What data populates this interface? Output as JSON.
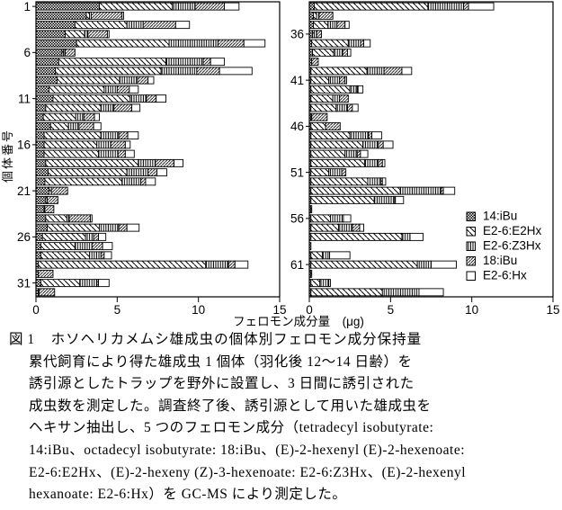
{
  "colors": {
    "ink": "#000000",
    "background": "#ffffff"
  },
  "chart_data": {
    "type": "bar",
    "variant": "horizontal-stacked",
    "title": "",
    "xlabel": "フェロモン成分量　(μg)",
    "ylabel": "個体番号",
    "xlim": [
      0,
      15
    ],
    "x_ticks": [
      0,
      5,
      10,
      15
    ],
    "grid": false,
    "legend_position": "inside-right-bottom",
    "components": [
      "14:iBu",
      "E2-6:E2Hx",
      "E2-6:Z3Hx",
      "18:iBu",
      "E2-6:Hx"
    ],
    "component_patterns": [
      "checker",
      "diagonal-down",
      "vertical-lines",
      "diagonal-up",
      "plain"
    ],
    "panels": [
      {
        "start_id": 1,
        "end_id": 32,
        "y_ticks": [
          1,
          6,
          11,
          16,
          21,
          26,
          31
        ]
      },
      {
        "start_id": 33,
        "end_id": 64,
        "y_ticks": [
          36,
          41,
          46,
          51,
          56,
          61
        ]
      }
    ],
    "rows": [
      {
        "id": 1,
        "values": [
          3.9,
          4.5,
          1.4,
          1.8,
          0.9
        ]
      },
      {
        "id": 2,
        "values": [
          3.1,
          0.2,
          0.1,
          1.9,
          0.1
        ]
      },
      {
        "id": 3,
        "values": [
          2.4,
          3.2,
          1.0,
          2.0,
          0.85
        ]
      },
      {
        "id": 4,
        "values": [
          1.8,
          1.2,
          0.2,
          1.2,
          0.1
        ]
      },
      {
        "id": 5,
        "values": [
          2.5,
          5.7,
          3.0,
          1.6,
          1.3
        ]
      },
      {
        "id": 6,
        "values": [
          1.6,
          0.1,
          0.1,
          0.6,
          0
        ]
      },
      {
        "id": 7,
        "values": [
          1.4,
          6.6,
          2.3,
          0.45,
          0.85
        ]
      },
      {
        "id": 8,
        "values": [
          1.2,
          6.5,
          2.2,
          1.4,
          2.0
        ]
      },
      {
        "id": 9,
        "values": [
          1.3,
          3.85,
          1.1,
          0.65,
          0.35
        ]
      },
      {
        "id": 10,
        "values": [
          0.8,
          3.4,
          0.8,
          0.75,
          0.55
        ]
      },
      {
        "id": 11,
        "values": [
          1.05,
          4.75,
          1.0,
          0.6,
          0.6
        ]
      },
      {
        "id": 12,
        "values": [
          0.6,
          3.4,
          0.8,
          1.1,
          0.5
        ]
      },
      {
        "id": 13,
        "values": [
          0.45,
          2.0,
          0.5,
          0.65,
          0.3
        ]
      },
      {
        "id": 14,
        "values": [
          0.9,
          1.1,
          0.65,
          0.9,
          0.45
        ]
      },
      {
        "id": 15,
        "values": [
          0.5,
          3.5,
          1.1,
          0.55,
          0.65
        ]
      },
      {
        "id": 16,
        "values": [
          0.5,
          3.25,
          0.85,
          0.9,
          0.3
        ]
      },
      {
        "id": 17,
        "values": [
          0.5,
          3.35,
          1.2,
          0.45,
          0.55
        ]
      },
      {
        "id": 18,
        "values": [
          0.6,
          5.7,
          1.05,
          1.15,
          0.55
        ]
      },
      {
        "id": 19,
        "values": [
          0.75,
          4.85,
          1.3,
          0.55,
          0.6
        ]
      },
      {
        "id": 20,
        "values": [
          0.55,
          4.75,
          1.15,
          0.3,
          0.6
        ]
      },
      {
        "id": 21,
        "values": [
          0.8,
          0.15,
          0,
          1.0,
          0
        ]
      },
      {
        "id": 22,
        "values": [
          0.6,
          0.1,
          0,
          0.65,
          0
        ]
      },
      {
        "id": 23,
        "values": [
          0.5,
          0.05,
          0,
          0.55,
          0
        ]
      },
      {
        "id": 24,
        "values": [
          0.6,
          1.3,
          0.15,
          1.3,
          0.1
        ]
      },
      {
        "id": 25,
        "values": [
          0.7,
          3.2,
          1.2,
          0.5,
          0.75
        ]
      },
      {
        "id": 26,
        "values": [
          0.4,
          2.65,
          0.5,
          0.3,
          0.45
        ]
      },
      {
        "id": 27,
        "values": [
          0.3,
          2.1,
          1.05,
          0.65,
          0.6
        ]
      },
      {
        "id": 28,
        "values": [
          0.3,
          3.0,
          0.7,
          0.2,
          0.45
        ]
      },
      {
        "id": 29,
        "values": [
          0.15,
          10.3,
          1.4,
          0.4,
          0.8
        ]
      },
      {
        "id": 30,
        "values": [
          0.15,
          0,
          0,
          0.9,
          0
        ]
      },
      {
        "id": 31,
        "values": [
          0.3,
          2.4,
          1.05,
          0.1,
          0.65
        ]
      },
      {
        "id": 32,
        "values": [
          0.15,
          0.05,
          0,
          0.95,
          0
        ]
      },
      {
        "id": 33,
        "values": [
          0.3,
          7.0,
          2.2,
          0.3,
          1.55
        ]
      },
      {
        "id": 34,
        "values": [
          0.25,
          0.2,
          0.15,
          0.85,
          0
        ]
      },
      {
        "id": 35,
        "values": [
          0.25,
          0.9,
          0.55,
          0.5,
          0.25
        ]
      },
      {
        "id": 36,
        "values": [
          0.2,
          0.1,
          0.15,
          0.3,
          0
        ]
      },
      {
        "id": 37,
        "values": [
          0.15,
          2.25,
          0.75,
          0.2,
          0.4
        ]
      },
      {
        "id": 38,
        "values": [
          0.2,
          1.3,
          0.55,
          0.3,
          0.2
        ]
      },
      {
        "id": 39,
        "values": [
          0.15,
          0,
          0,
          0.4,
          0
        ]
      },
      {
        "id": 40,
        "values": [
          0.1,
          3.45,
          1.05,
          1.1,
          0.6
        ]
      },
      {
        "id": 41,
        "values": [
          0.1,
          1.1,
          0.65,
          0.35,
          0.1
        ]
      },
      {
        "id": 42,
        "values": [
          0.1,
          2.4,
          0.45,
          0.05,
          0.3
        ]
      },
      {
        "id": 43,
        "values": [
          0.1,
          1.35,
          0.4,
          0.55,
          0
        ]
      },
      {
        "id": 44,
        "values": [
          0.1,
          1.55,
          0.7,
          0.3,
          0.35
        ]
      },
      {
        "id": 45,
        "values": [
          0.1,
          0.05,
          0,
          0.95,
          0
        ]
      },
      {
        "id": 46,
        "values": [
          0.1,
          0.9,
          0,
          0.9,
          0
        ]
      },
      {
        "id": 47,
        "values": [
          0.1,
          2.4,
          1.15,
          0.2,
          0.6
        ]
      },
      {
        "id": 48,
        "values": [
          0.1,
          3.2,
          0.95,
          0.3,
          0.6
        ]
      },
      {
        "id": 49,
        "values": [
          0.1,
          2.1,
          0.75,
          0.2,
          0.45
        ]
      },
      {
        "id": 50,
        "values": [
          0.1,
          3.3,
          0.85,
          0.25,
          0.15
        ]
      },
      {
        "id": 51,
        "values": [
          0.1,
          1.1,
          0.8,
          0.25,
          0
        ]
      },
      {
        "id": 52,
        "values": [
          0.1,
          3.5,
          0.8,
          0.1,
          0.2
        ]
      },
      {
        "id": 53,
        "values": [
          0.1,
          5.5,
          2.5,
          0.15,
          0.7
        ]
      },
      {
        "id": 54,
        "values": [
          0.1,
          3.9,
          1.25,
          0.05,
          0.5
        ]
      },
      {
        "id": 55,
        "values": [
          0.1,
          0.05,
          0,
          0,
          0
        ]
      },
      {
        "id": 56,
        "values": [
          0.1,
          1.2,
          0.8,
          0,
          0.45
        ]
      },
      {
        "id": 57,
        "values": [
          0.1,
          1.7,
          0.85,
          0.45,
          0.25
        ]
      },
      {
        "id": 58,
        "values": [
          0.1,
          5.6,
          0.5,
          0,
          0.8
        ]
      },
      {
        "id": 59,
        "values": [
          0.1,
          0,
          0,
          0,
          0
        ]
      },
      {
        "id": 60,
        "values": [
          0.1,
          0.7,
          0.45,
          0,
          1.25
        ]
      },
      {
        "id": 61,
        "values": [
          0.1,
          6.55,
          0.85,
          0,
          1.55
        ]
      },
      {
        "id": 62,
        "values": [
          0.1,
          0.05,
          0,
          0,
          0
        ]
      },
      {
        "id": 63,
        "values": [
          0.1,
          0.55,
          0.55,
          0,
          0.1
        ]
      },
      {
        "id": 64,
        "values": [
          0.1,
          4.4,
          2.25,
          0,
          1.5
        ]
      }
    ]
  },
  "legend": {
    "items": [
      {
        "label": "14:iBu",
        "pattern": "checker"
      },
      {
        "label": "E2-6:E2Hx",
        "pattern": "diagonal-down"
      },
      {
        "label": "E2-6:Z3Hx",
        "pattern": "vertical-lines"
      },
      {
        "label": "18:iBu",
        "pattern": "diagonal-up"
      },
      {
        "label": "E2-6:Hx",
        "pattern": "plain"
      }
    ]
  },
  "caption": {
    "tag": "図 1",
    "title": "ホソヘリカメムシ雄成虫の個体別フェロモン成分保持量",
    "body_lines": [
      "累代飼育により得た雄成虫 1 個体（羽化後 12〜14 日齢）を",
      "誘引源としたトラップを野外に設置し、3 日間に誘引された",
      "成虫数を測定した。調査終了後、誘引源として用いた雄成虫を",
      "ヘキサン抽出し、5 つのフェロモン成分（tetradecyl isobutyrate:",
      "14:iBu、octadecyl isobutyrate: 18:iBu、(E)-2-hexenyl (E)-2-hexenoate:",
      "E2-6:E2Hx、(E)-2-hexeny (Z)-3-hexenoate: E2-6:Z3Hx、(E)-2-hexenyl",
      "hexanoate: E2-6:Hx）を GC-MS により測定した。"
    ]
  }
}
